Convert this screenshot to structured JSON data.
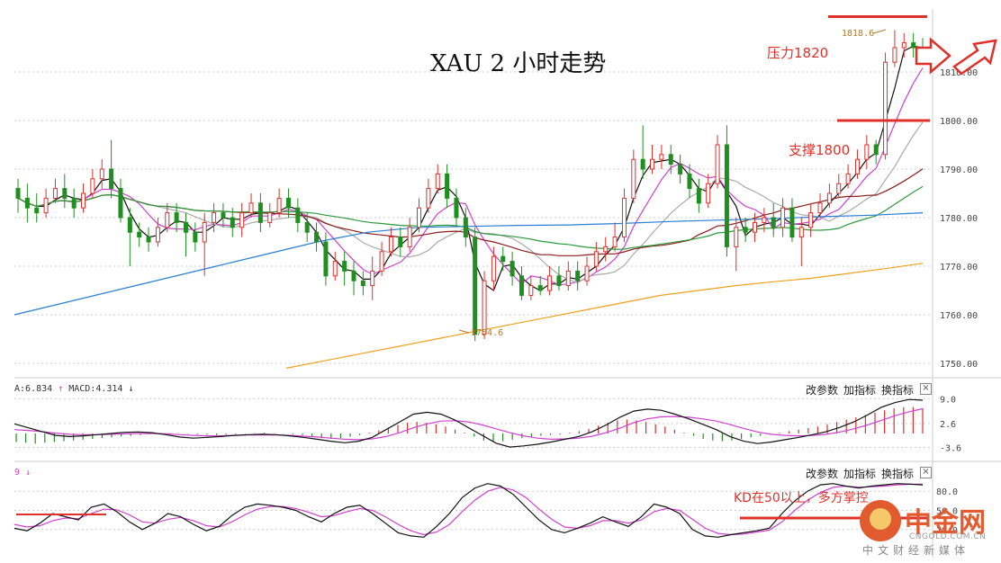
{
  "title": "XAU 2 小时走势",
  "annotations": {
    "resistance": "压力1820",
    "support": "支撑1800",
    "kd_note": "KD在50以上，多方掌控",
    "high_label": "1818.6",
    "low_label": "1754.6"
  },
  "panels": {
    "macd_label": "A:6.834",
    "macd_value": "MACD:4.314",
    "kd_label": "9",
    "btn_params": "改参数",
    "btn_add": "加指标",
    "btn_switch": "换指标",
    "btn_close": "×"
  },
  "watermark": {
    "name": "中金网",
    "domain": "CNGOLD.COM.CN",
    "slogan": "中文财经新媒体"
  },
  "colors": {
    "up": "#e0302a",
    "down": "#1f8f1f",
    "ma_orange": "#f0a020",
    "ma_blue": "#2a7fd4"
  },
  "chart_data": {
    "type": "candlestick",
    "title": "XAU 2 小时走势",
    "y_ticks": [
      1750,
      1760,
      1770,
      1780,
      1790,
      1800,
      1810
    ],
    "y_tick_labels": [
      "1750.00",
      "1760.00",
      "1770.00",
      "1780.00",
      "1790.00",
      "1800.00",
      "1810.00"
    ],
    "ylim": [
      1745,
      1823
    ],
    "candles": [
      [
        1786,
        1784,
        1788,
        1781
      ],
      [
        1784,
        1782,
        1787,
        1779
      ],
      [
        1782,
        1781,
        1785,
        1779
      ],
      [
        1781,
        1784,
        1786,
        1780
      ],
      [
        1784,
        1786,
        1788,
        1783
      ],
      [
        1786,
        1784,
        1789,
        1782
      ],
      [
        1784,
        1782,
        1786,
        1780
      ],
      [
        1782,
        1785,
        1787,
        1781
      ],
      [
        1785,
        1788,
        1790,
        1784
      ],
      [
        1788,
        1790,
        1792,
        1786
      ],
      [
        1790,
        1786,
        1796,
        1784
      ],
      [
        1786,
        1780,
        1788,
        1779
      ],
      [
        1780,
        1777,
        1782,
        1770
      ],
      [
        1777,
        1776,
        1779,
        1774
      ],
      [
        1776,
        1775,
        1778,
        1773
      ],
      [
        1775,
        1778,
        1780,
        1774
      ],
      [
        1778,
        1781,
        1783,
        1777
      ],
      [
        1781,
        1779,
        1783,
        1777
      ],
      [
        1779,
        1777,
        1781,
        1772
      ],
      [
        1777,
        1775,
        1779,
        1773
      ],
      [
        1775,
        1779,
        1781,
        1768
      ],
      [
        1779,
        1781,
        1783,
        1777
      ],
      [
        1781,
        1780,
        1783,
        1778
      ],
      [
        1780,
        1778,
        1782,
        1776
      ],
      [
        1778,
        1781,
        1783,
        1776
      ],
      [
        1781,
        1783,
        1785,
        1780
      ],
      [
        1783,
        1779,
        1785,
        1777
      ],
      [
        1779,
        1781,
        1783,
        1778
      ],
      [
        1781,
        1784,
        1786,
        1780
      ],
      [
        1784,
        1782,
        1786,
        1780
      ],
      [
        1782,
        1779,
        1784,
        1777
      ],
      [
        1779,
        1777,
        1781,
        1775
      ],
      [
        1777,
        1775,
        1779,
        1773
      ],
      [
        1775,
        1768,
        1777,
        1766
      ],
      [
        1768,
        1771,
        1773,
        1767
      ],
      [
        1771,
        1769,
        1773,
        1766
      ],
      [
        1769,
        1767,
        1771,
        1764
      ],
      [
        1767,
        1766,
        1769,
        1764
      ],
      [
        1766,
        1769,
        1772,
        1763
      ],
      [
        1769,
        1773,
        1775,
        1768
      ],
      [
        1773,
        1776,
        1778,
        1772
      ],
      [
        1776,
        1774,
        1778,
        1772
      ],
      [
        1774,
        1778,
        1780,
        1773
      ],
      [
        1778,
        1782,
        1784,
        1777
      ],
      [
        1782,
        1786,
        1788,
        1781
      ],
      [
        1786,
        1789,
        1791,
        1785
      ],
      [
        1789,
        1784,
        1791,
        1782
      ],
      [
        1784,
        1780,
        1786,
        1778
      ],
      [
        1780,
        1776,
        1782,
        1774
      ],
      [
        1776,
        1756,
        1778,
        1754.6
      ],
      [
        1756,
        1767,
        1769,
        1755
      ],
      [
        1767,
        1772,
        1774,
        1765
      ],
      [
        1772,
        1771,
        1774,
        1769
      ],
      [
        1771,
        1768,
        1773,
        1766
      ],
      [
        1768,
        1764,
        1770,
        1763
      ],
      [
        1764,
        1766,
        1768,
        1763
      ],
      [
        1766,
        1765,
        1768,
        1764
      ],
      [
        1765,
        1768,
        1770,
        1764
      ],
      [
        1768,
        1766,
        1770,
        1765
      ],
      [
        1766,
        1769,
        1771,
        1765
      ],
      [
        1769,
        1767,
        1771,
        1765
      ],
      [
        1767,
        1770,
        1772,
        1766
      ],
      [
        1770,
        1773,
        1775,
        1769
      ],
      [
        1773,
        1774,
        1776,
        1771
      ],
      [
        1774,
        1776,
        1779,
        1773
      ],
      [
        1776,
        1784,
        1786,
        1775
      ],
      [
        1784,
        1792,
        1794,
        1783
      ],
      [
        1792,
        1790,
        1799,
        1788
      ],
      [
        1790,
        1792,
        1795,
        1789
      ],
      [
        1792,
        1793,
        1795,
        1790
      ],
      [
        1793,
        1791,
        1795,
        1789
      ],
      [
        1791,
        1789,
        1793,
        1787
      ],
      [
        1789,
        1786,
        1791,
        1784
      ],
      [
        1786,
        1783,
        1788,
        1781
      ],
      [
        1783,
        1787,
        1789,
        1782
      ],
      [
        1787,
        1795,
        1797,
        1786
      ],
      [
        1795,
        1774,
        1799,
        1772
      ],
      [
        1774,
        1778,
        1780,
        1769
      ],
      [
        1778,
        1777,
        1780,
        1775
      ],
      [
        1777,
        1779,
        1781,
        1775
      ],
      [
        1779,
        1780,
        1782,
        1777
      ],
      [
        1780,
        1778,
        1783,
        1776
      ],
      [
        1778,
        1782,
        1784,
        1776
      ],
      [
        1782,
        1776,
        1784,
        1775
      ],
      [
        1776,
        1778,
        1780,
        1770
      ],
      [
        1778,
        1781,
        1783,
        1776
      ],
      [
        1781,
        1783,
        1785,
        1780
      ],
      [
        1783,
        1785,
        1787,
        1782
      ],
      [
        1785,
        1787,
        1789,
        1784
      ],
      [
        1787,
        1789,
        1791,
        1786
      ],
      [
        1789,
        1792,
        1794,
        1788
      ],
      [
        1792,
        1795,
        1797,
        1790
      ],
      [
        1795,
        1793,
        1796,
        1791
      ],
      [
        1793,
        1812,
        1814,
        1792
      ],
      [
        1812,
        1815,
        1818.6,
        1811
      ],
      [
        1815,
        1816,
        1818,
        1813
      ],
      [
        1816,
        1815,
        1818,
        1813
      ],
      [
        1815,
        1814,
        1817,
        1812
      ]
    ],
    "ma_orange": [
      1749,
      1750.5,
      1752,
      1753.5,
      1755,
      1756.5,
      1758,
      1759.5,
      1761,
      1762.5,
      1764,
      1765,
      1766,
      1766.8,
      1767.5,
      1768.5,
      1769.5,
      1770.6
    ],
    "ma_blue": [
      1760,
      1762.5,
      1765,
      1767.5,
      1770,
      1772.5,
      1775,
      1777,
      1778,
      1778.2,
      1778.4,
      1778.5,
      1778.8,
      1779.2,
      1779.5,
      1779.8,
      1780.2,
      1780.5,
      1781
    ],
    "macd": {
      "y_ticks": [
        9.0,
        2.6,
        -3.6
      ],
      "y_tick_labels": [
        "9.0",
        "2.6",
        "-3.6"
      ],
      "hist": [
        -2.2,
        -2.4,
        -2.6,
        -2.4,
        -2.2,
        -2.0,
        -1.8,
        -1.6,
        -1.4,
        -1.2,
        -1.0,
        -0.8,
        -0.6,
        -0.4,
        -0.2,
        -0.1,
        0.1,
        0.1,
        -0.1,
        -0.2,
        -0.3,
        -0.4,
        -0.3,
        -0.2,
        -0.1,
        0.1,
        0.2,
        0.1,
        -0.1,
        -0.2,
        -0.4,
        -0.8,
        -1.2,
        -1.4,
        -1.2,
        -0.8,
        -0.4,
        0.2,
        0.8,
        1.5,
        2.2,
        2.8,
        3.0,
        2.8,
        2.4,
        1.8,
        1.0,
        0.2,
        -0.8,
        -1.8,
        -2.2,
        -2.0,
        -1.6,
        -1.2,
        -0.8,
        -0.6,
        -0.4,
        -0.2,
        0.2,
        0.6,
        1.2,
        2.0,
        2.8,
        3.4,
        3.6,
        3.4,
        3.0,
        2.4,
        1.8,
        1.0,
        0.2,
        -0.6,
        -1.4,
        -1.8,
        -2.0,
        -1.8,
        -1.4,
        -1.0,
        -0.6,
        -0.2,
        0.2,
        0.6,
        1.0,
        1.4,
        1.8,
        2.4,
        3.0,
        3.6,
        4.2,
        4.8,
        5.4,
        6.0,
        6.5,
        6.8,
        6.8,
        6.5
      ],
      "dif": [
        2.5,
        1.5,
        0.5,
        -0.5,
        -0.8,
        -0.6,
        -0.3,
        0.0,
        0.3,
        0.4,
        0.2,
        -0.3,
        -0.9,
        -1.2,
        -1.0,
        -0.8,
        -0.5,
        -0.3,
        -0.2,
        -0.3,
        -0.6,
        -1.0,
        -1.5,
        -2.0,
        -2.4,
        -2.0,
        -1.0,
        1.0,
        3.0,
        5.0,
        5.5,
        5.0,
        3.5,
        1.5,
        -0.5,
        -2.5,
        -3.5,
        -3.2,
        -2.8,
        -2.2,
        -1.5,
        -0.8,
        0.5,
        2.2,
        4.2,
        5.8,
        6.3,
        6.0,
        5.0,
        3.8,
        2.4,
        1.0,
        -0.8,
        -2.0,
        -2.6,
        -2.2,
        -1.6,
        -1.0,
        -0.3,
        0.5,
        1.6,
        3.0,
        4.8,
        6.8,
        8.0,
        8.8,
        8.6
      ],
      "dea": [
        1.0,
        0.8,
        0.5,
        0.1,
        -0.2,
        -0.3,
        -0.3,
        -0.2,
        -0.1,
        0.0,
        0.0,
        -0.1,
        -0.3,
        -0.5,
        -0.6,
        -0.6,
        -0.5,
        -0.4,
        -0.4,
        -0.4,
        -0.5,
        -0.7,
        -0.9,
        -1.2,
        -1.5,
        -1.6,
        -1.4,
        -0.8,
        0.2,
        1.5,
        2.5,
        3.2,
        3.3,
        3.0,
        2.2,
        1.2,
        0.2,
        -0.6,
        -1.2,
        -1.5,
        -1.4,
        -1.2,
        -0.7,
        0.2,
        1.4,
        2.8,
        3.8,
        4.3,
        4.4,
        4.2,
        3.8,
        3.2,
        2.3,
        1.3,
        0.4,
        -0.2,
        -0.5,
        -0.6,
        -0.5,
        -0.2,
        0.4,
        1.2,
        2.2,
        3.4,
        4.6,
        5.6,
        6.4
      ]
    },
    "kd": {
      "y_ticks": [
        80.0,
        50.0,
        20.0
      ],
      "y_tick_labels": [
        "80.0",
        "50.0",
        "20.0"
      ],
      "k": [
        22,
        18,
        30,
        45,
        40,
        35,
        55,
        60,
        48,
        32,
        20,
        30,
        45,
        40,
        28,
        18,
        25,
        42,
        55,
        60,
        58,
        55,
        50,
        40,
        32,
        45,
        55,
        58,
        45,
        30,
        15,
        10,
        8,
        25,
        45,
        70,
        85,
        92,
        88,
        75,
        55,
        35,
        20,
        15,
        22,
        30,
        40,
        32,
        25,
        40,
        60,
        55,
        45,
        20,
        10,
        8,
        12,
        15,
        18,
        22,
        45,
        65,
        80,
        90,
        92,
        88,
        85,
        88,
        90,
        92,
        91,
        90
      ],
      "d": [
        28,
        24,
        26,
        34,
        38,
        37,
        45,
        52,
        51,
        43,
        32,
        30,
        36,
        39,
        34,
        26,
        24,
        32,
        43,
        52,
        56,
        56,
        53,
        47,
        40,
        42,
        48,
        53,
        50,
        40,
        28,
        18,
        12,
        16,
        28,
        48,
        66,
        80,
        86,
        82,
        70,
        52,
        36,
        24,
        22,
        26,
        34,
        34,
        30,
        35,
        48,
        53,
        50,
        36,
        22,
        14,
        12,
        13,
        16,
        19,
        32,
        50,
        66,
        78,
        86,
        88,
        86,
        87,
        88,
        90,
        91,
        91
      ]
    }
  }
}
